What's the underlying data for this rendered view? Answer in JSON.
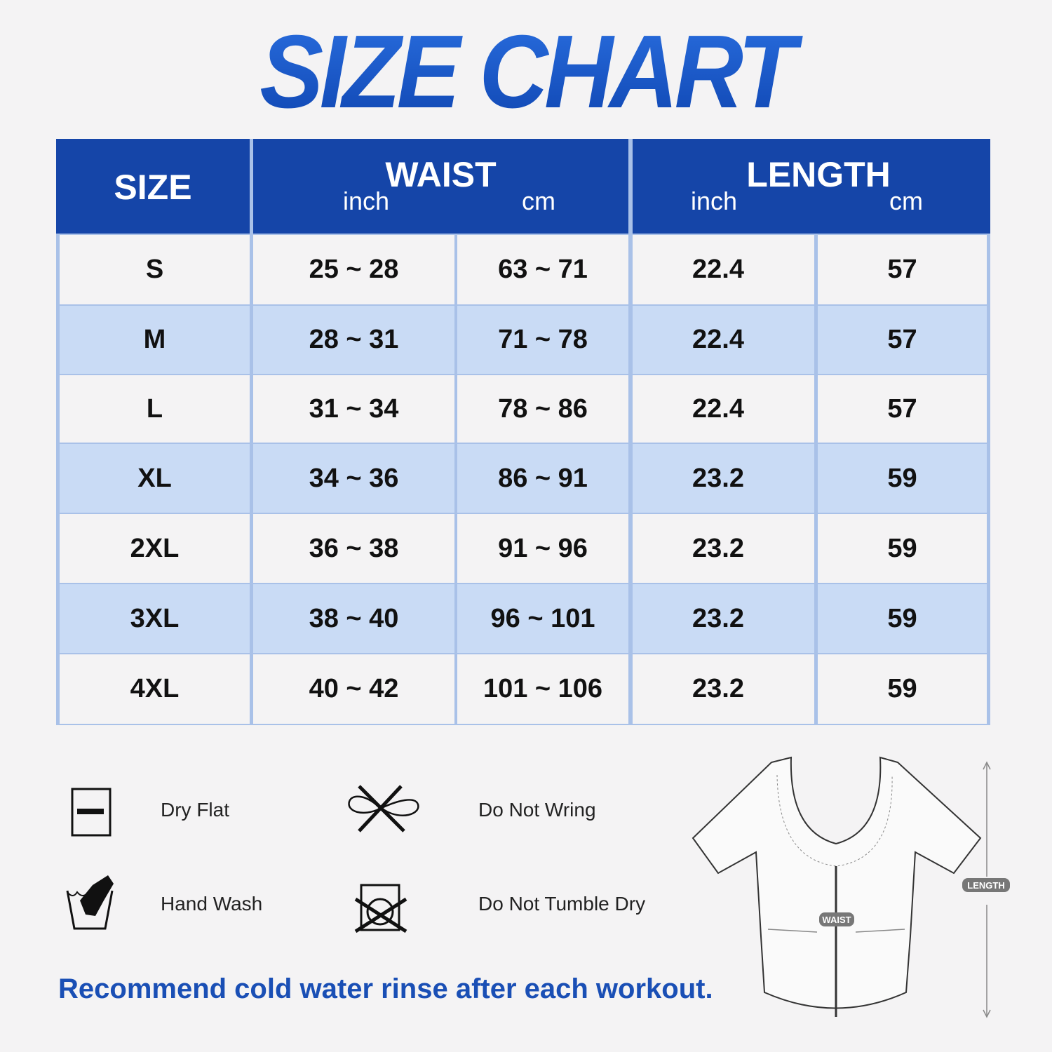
{
  "title": "SIZE CHART",
  "table": {
    "headers": {
      "size": "SIZE",
      "waist": "WAIST",
      "length": "LENGTH",
      "inch": "inch",
      "cm": "cm"
    },
    "rows": [
      {
        "size": "S",
        "waist_inch": "25 ~ 28",
        "waist_cm": "63 ~ 71",
        "length_inch": "22.4",
        "length_cm": "57"
      },
      {
        "size": "M",
        "waist_inch": "28 ~ 31",
        "waist_cm": "71 ~ 78",
        "length_inch": "22.4",
        "length_cm": "57"
      },
      {
        "size": "L",
        "waist_inch": "31 ~ 34",
        "waist_cm": "78 ~ 86",
        "length_inch": "22.4",
        "length_cm": "57"
      },
      {
        "size": "XL",
        "waist_inch": "34 ~ 36",
        "waist_cm": "86 ~ 91",
        "length_inch": "23.2",
        "length_cm": "59"
      },
      {
        "size": "2XL",
        "waist_inch": "36 ~ 38",
        "waist_cm": "91 ~ 96",
        "length_inch": "23.2",
        "length_cm": "59"
      },
      {
        "size": "3XL",
        "waist_inch": "38 ~ 40",
        "waist_cm": "96 ~ 101",
        "length_inch": "23.2",
        "length_cm": "59"
      },
      {
        "size": "4XL",
        "waist_inch": "40 ~ 42",
        "waist_cm": "101 ~ 106",
        "length_inch": "23.2",
        "length_cm": "59"
      }
    ],
    "colors": {
      "header": "#1545a8",
      "row_light": "#f4f3f4",
      "row_blue": "#c9dbf5",
      "grid": "#a9c1e8"
    }
  },
  "care": [
    {
      "label": "Dry Flat",
      "icon": "dry-flat-icon"
    },
    {
      "label": "Do Not Wring",
      "icon": "do-not-wring-icon"
    },
    {
      "label": "Hand Wash",
      "icon": "hand-wash-icon"
    },
    {
      "label": "Do Not Tumble Dry",
      "icon": "do-not-tumble-dry-icon"
    }
  ],
  "diagram": {
    "waist_label": "WAIST",
    "length_label": "LENGTH"
  },
  "note": "Recommend cold water rinse after each workout."
}
